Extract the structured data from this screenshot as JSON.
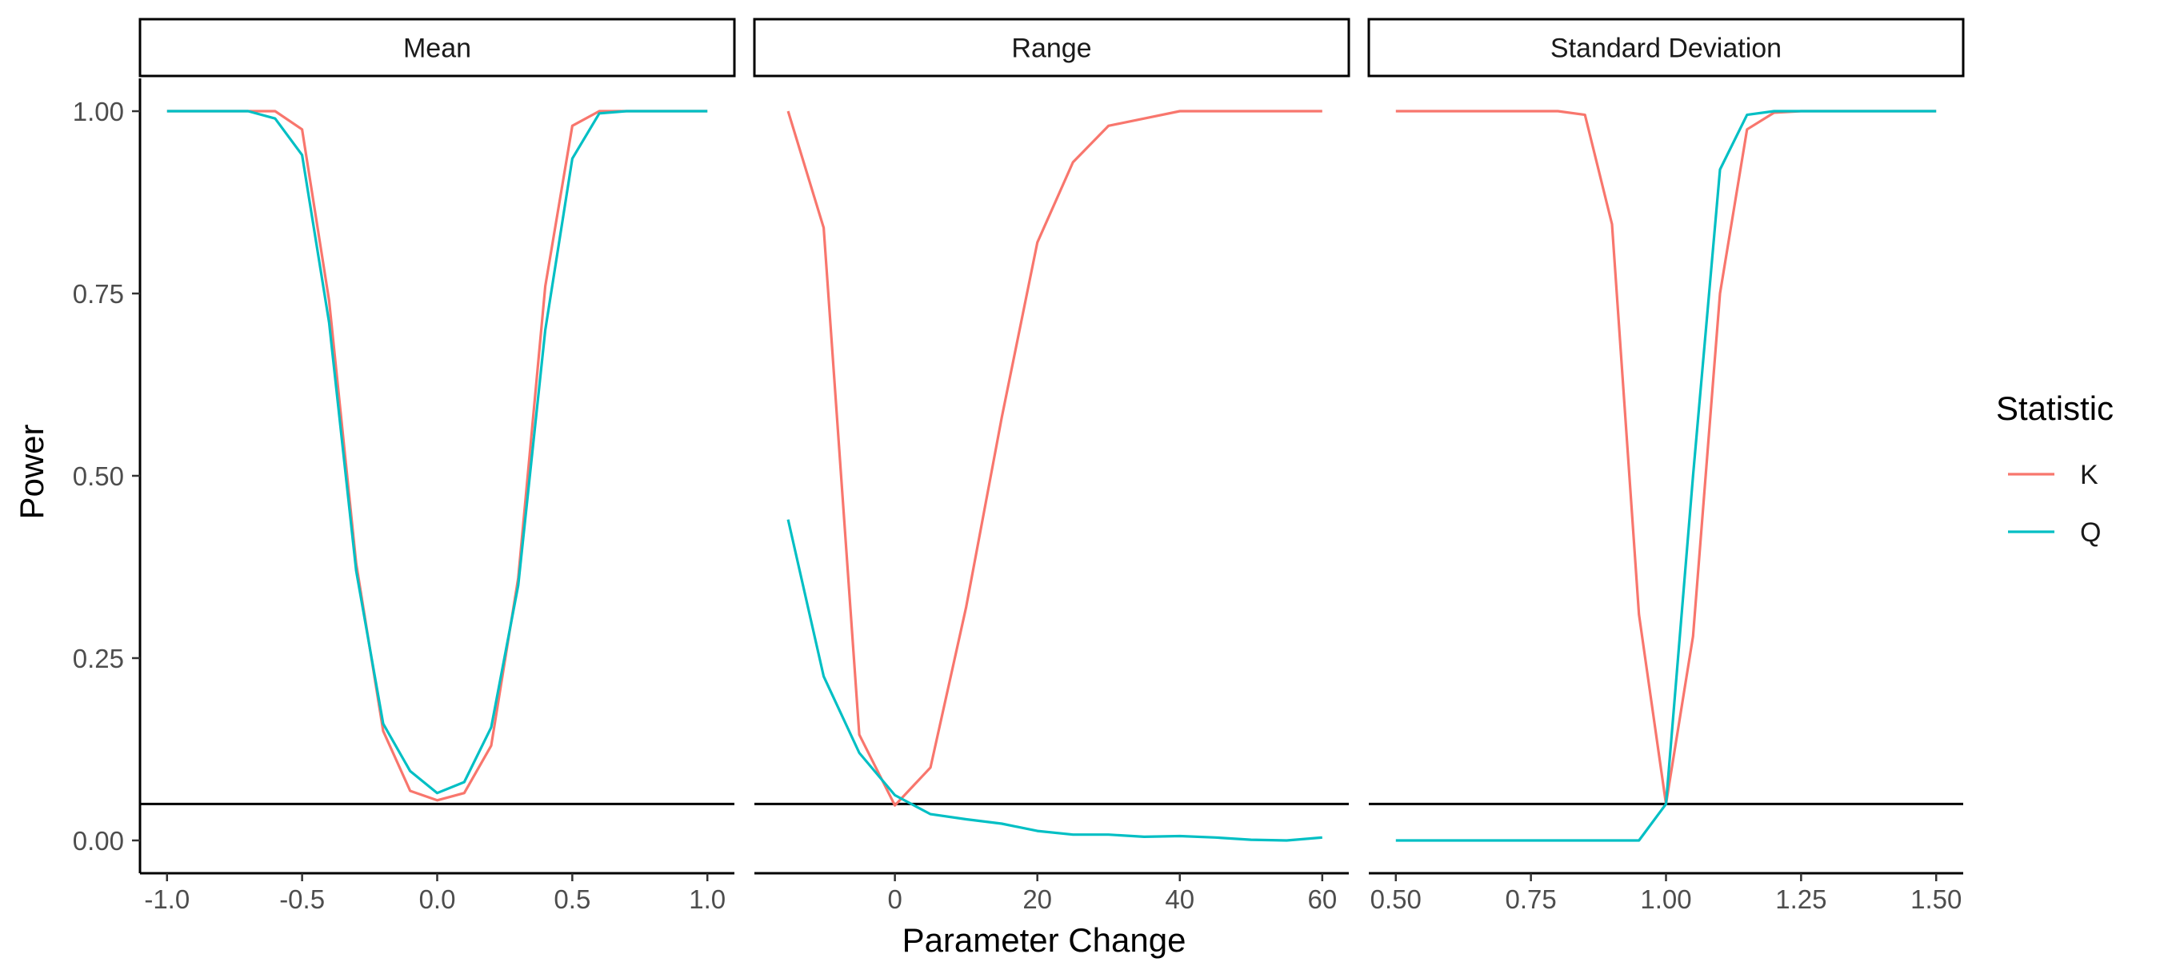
{
  "chart_data": {
    "type": "line",
    "xlabel": "Parameter Change",
    "ylabel": "Power",
    "ylim": [
      -0.045,
      1.045
    ],
    "yticks": [
      0.0,
      0.25,
      0.5,
      0.75,
      1.0
    ],
    "ytick_labels": [
      "0.00",
      "0.25",
      "0.50",
      "0.75",
      "1.00"
    ],
    "reference_line": 0.05,
    "grid": false,
    "legend": {
      "title": "Statistic",
      "position": "right",
      "entries": [
        {
          "label": "K",
          "color": "#F8766D"
        },
        {
          "label": "Q",
          "color": "#00BFC4"
        }
      ]
    },
    "panels": [
      {
        "strip": "Mean",
        "xlim": [
          -1.1,
          1.1
        ],
        "xticks": [
          -1.0,
          -0.5,
          0.0,
          0.5,
          1.0
        ],
        "xtick_labels": [
          "-1.0",
          "-0.5",
          "0.0",
          "0.5",
          "1.0"
        ],
        "series": [
          {
            "name": "K",
            "x": [
              -1.0,
              -0.9,
              -0.8,
              -0.7,
              -0.6,
              -0.5,
              -0.4,
              -0.3,
              -0.2,
              -0.1,
              0.0,
              0.1,
              0.2,
              0.3,
              0.4,
              0.5,
              0.6,
              0.7,
              0.8,
              0.9,
              1.0
            ],
            "y": [
              1.0,
              1.0,
              1.0,
              1.0,
              1.0,
              0.975,
              0.74,
              0.38,
              0.15,
              0.068,
              0.055,
              0.065,
              0.13,
              0.36,
              0.76,
              0.98,
              1.0,
              1.0,
              1.0,
              1.0,
              1.0
            ]
          },
          {
            "name": "Q",
            "x": [
              -1.0,
              -0.9,
              -0.8,
              -0.7,
              -0.6,
              -0.5,
              -0.4,
              -0.3,
              -0.2,
              -0.1,
              0.0,
              0.1,
              0.2,
              0.3,
              0.4,
              0.5,
              0.6,
              0.7,
              0.8,
              0.9,
              1.0
            ],
            "y": [
              1.0,
              1.0,
              1.0,
              1.0,
              0.99,
              0.94,
              0.71,
              0.37,
              0.16,
              0.095,
              0.065,
              0.08,
              0.155,
              0.35,
              0.7,
              0.935,
              0.997,
              1.0,
              1.0,
              1.0,
              1.0
            ]
          }
        ]
      },
      {
        "strip": "Range",
        "xlim": [
          -19.725,
          63.725
        ],
        "xticks": [
          0,
          20,
          40,
          60
        ],
        "xtick_labels": [
          "0",
          "20",
          "40",
          "60"
        ],
        "series": [
          {
            "name": "K",
            "x": [
              -15,
              -10,
              -5,
              0,
              5,
              10,
              15,
              20,
              25,
              30,
              35,
              40,
              45,
              50,
              55,
              60
            ],
            "y": [
              1.0,
              0.84,
              0.145,
              0.048,
              0.1,
              0.32,
              0.58,
              0.82,
              0.93,
              0.98,
              0.99,
              1.0,
              1.0,
              1.0,
              1.0,
              1.0
            ]
          },
          {
            "name": "Q",
            "x": [
              -15,
              -10,
              -5,
              0,
              5,
              10,
              15,
              20,
              25,
              30,
              35,
              40,
              45,
              50,
              55,
              60
            ],
            "y": [
              0.44,
              0.225,
              0.12,
              0.062,
              0.036,
              0.029,
              0.023,
              0.013,
              0.008,
              0.008,
              0.005,
              0.006,
              0.004,
              0.001,
              0.0,
              0.004
            ]
          }
        ]
      },
      {
        "strip": "Standard Deviation",
        "xlim": [
          0.45,
          1.55
        ],
        "xticks": [
          0.5,
          0.75,
          1.0,
          1.25,
          1.5
        ],
        "xtick_labels": [
          "0.50",
          "0.75",
          "1.00",
          "1.25",
          "1.50"
        ],
        "series": [
          {
            "name": "K",
            "x": [
              0.5,
              0.55,
              0.6,
              0.65,
              0.7,
              0.75,
              0.8,
              0.85,
              0.9,
              0.95,
              1.0,
              1.05,
              1.1,
              1.15,
              1.2,
              1.25,
              1.3,
              1.35,
              1.4,
              1.45,
              1.5
            ],
            "y": [
              1.0,
              1.0,
              1.0,
              1.0,
              1.0,
              1.0,
              1.0,
              0.995,
              0.845,
              0.31,
              0.05,
              0.28,
              0.75,
              0.975,
              0.998,
              1.0,
              1.0,
              1.0,
              1.0,
              1.0,
              1.0
            ]
          },
          {
            "name": "Q",
            "x": [
              0.5,
              0.55,
              0.6,
              0.65,
              0.7,
              0.75,
              0.8,
              0.85,
              0.9,
              0.95,
              1.0,
              1.05,
              1.1,
              1.15,
              1.2,
              1.25,
              1.3,
              1.35,
              1.4,
              1.45,
              1.5
            ],
            "y": [
              0.0,
              0.0,
              0.0,
              0.0,
              0.0,
              0.0,
              0.0,
              0.0,
              0.0,
              0.0,
              0.05,
              0.5,
              0.92,
              0.995,
              1.0,
              1.0,
              1.0,
              1.0,
              1.0,
              1.0,
              1.0
            ]
          }
        ]
      }
    ]
  }
}
